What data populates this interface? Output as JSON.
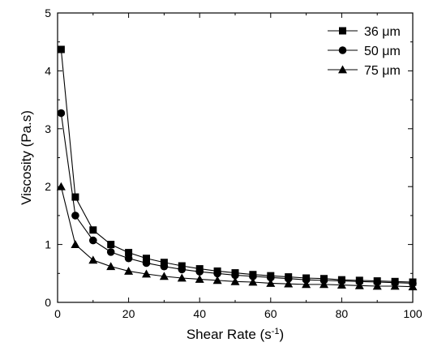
{
  "chart_data": {
    "type": "line",
    "xlabel": "Shear Rate (s",
    "xlabel_sup": "-1",
    "xlabel_close": ")",
    "ylabel": "Viscosity (Pa.s)",
    "xlim": [
      0,
      100
    ],
    "ylim": [
      0,
      5
    ],
    "xticks": [
      0,
      20,
      40,
      60,
      80,
      100
    ],
    "yticks": [
      0,
      1,
      2,
      3,
      4,
      5
    ],
    "grid": false,
    "legend_position": "top-right",
    "x": [
      1,
      5,
      10,
      15,
      20,
      25,
      30,
      35,
      40,
      45,
      50,
      55,
      60,
      65,
      70,
      75,
      80,
      85,
      90,
      95,
      100
    ],
    "series": [
      {
        "name": "36 μm",
        "marker": "square",
        "values": [
          4.37,
          1.82,
          1.25,
          1.0,
          0.86,
          0.76,
          0.69,
          0.63,
          0.58,
          0.54,
          0.51,
          0.48,
          0.46,
          0.44,
          0.42,
          0.41,
          0.39,
          0.38,
          0.37,
          0.36,
          0.35
        ]
      },
      {
        "name": "50 μm",
        "marker": "circle",
        "values": [
          3.27,
          1.5,
          1.07,
          0.87,
          0.76,
          0.68,
          0.62,
          0.57,
          0.53,
          0.5,
          0.47,
          0.45,
          0.43,
          0.41,
          0.39,
          0.38,
          0.37,
          0.36,
          0.35,
          0.34,
          0.33
        ]
      },
      {
        "name": "75 μm",
        "marker": "triangle",
        "values": [
          2.0,
          1.0,
          0.73,
          0.62,
          0.54,
          0.49,
          0.45,
          0.42,
          0.4,
          0.38,
          0.36,
          0.35,
          0.33,
          0.32,
          0.31,
          0.31,
          0.3,
          0.29,
          0.28,
          0.28,
          0.27
        ]
      }
    ]
  }
}
